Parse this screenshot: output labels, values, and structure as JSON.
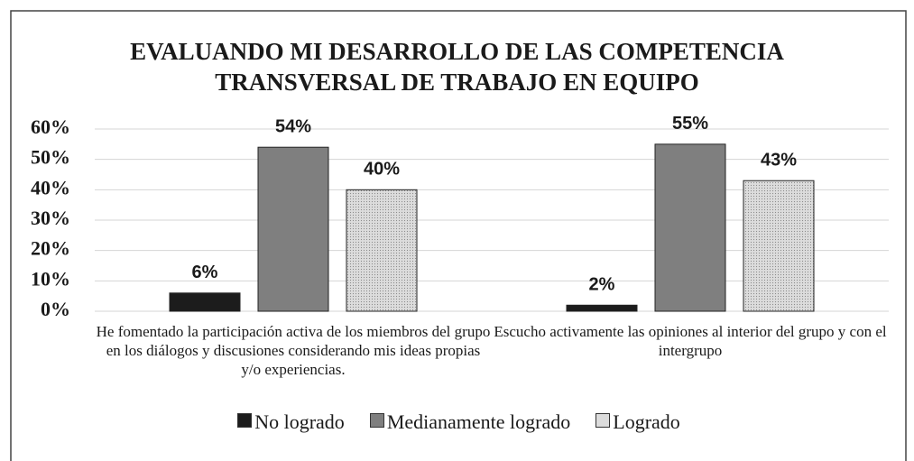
{
  "chart_data": {
    "type": "bar",
    "title": "EVALUANDO MI DESARROLLO DE LAS COMPETENCIA TRANSVERSAL DE TRABAJO EN EQUIPO",
    "categories": [
      "He fomentado la participación activa de los miembros del grupo en los diálogos y discusiones considerando mis ideas propias y/o experiencias.",
      "Escucho activamente las opiniones al interior del grupo y con el intergrupo"
    ],
    "series": [
      {
        "name": "No logrado",
        "color": "#1c1c1c",
        "values": [
          6,
          2
        ],
        "value_labels": [
          "6%",
          "2%"
        ]
      },
      {
        "name": "Medianamente logrado",
        "color": "#7f7f7f",
        "values": [
          54,
          55
        ],
        "value_labels": [
          "54%",
          "55%"
        ]
      },
      {
        "name": "Logrado",
        "color": "#dcdcdc",
        "values": [
          40,
          43
        ],
        "value_labels": [
          "40%",
          "43%"
        ]
      }
    ],
    "ylim": [
      0,
      60
    ],
    "yticks": [
      {
        "value": 0,
        "label": "0%"
      },
      {
        "value": 10,
        "label": "10%"
      },
      {
        "value": 20,
        "label": "20%"
      },
      {
        "value": 30,
        "label": "30%"
      },
      {
        "value": 40,
        "label": "40%"
      },
      {
        "value": 50,
        "label": "50%"
      },
      {
        "value": 60,
        "label": "60%"
      }
    ],
    "grid": true,
    "legend": "bottom"
  }
}
